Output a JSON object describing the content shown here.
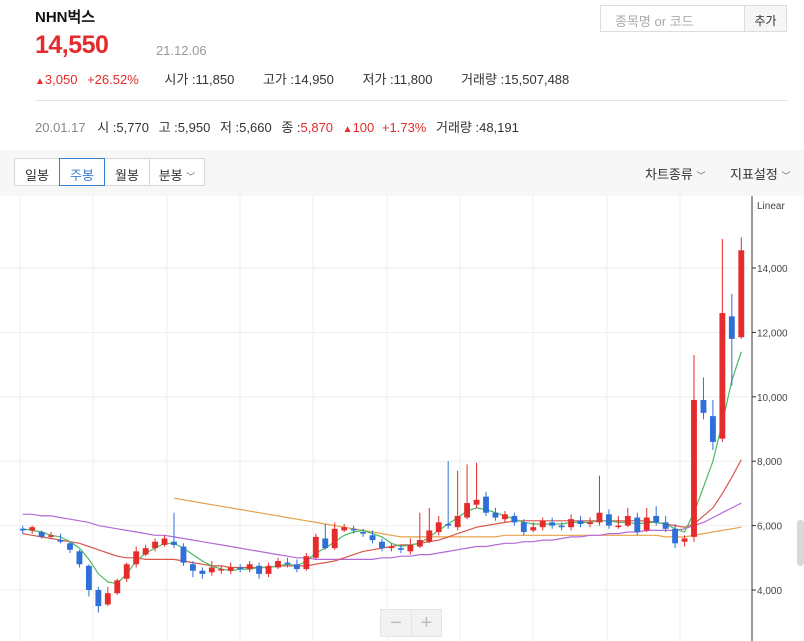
{
  "stock": {
    "name": "NHN벅스",
    "price": "14,550",
    "date": "21.12.06",
    "change": "3,050",
    "change_pct": "+26.52%",
    "open_label": "시가 : ",
    "open": "11,850",
    "high_label": "고가 : ",
    "high": "14,950",
    "low_label": "저가 : ",
    "low": "11,800",
    "volume_label": "거래량 : ",
    "volume": "15,507,488"
  },
  "search": {
    "placeholder": "종목명 or 코드",
    "add_label": "추가"
  },
  "detail": {
    "date": "20.01.17",
    "open_label": "시 : ",
    "open": "5,770",
    "high_label": "고 : ",
    "high": "5,950",
    "low_label": "저 : ",
    "low": "5,660",
    "close_label": "종 : ",
    "close": "5,870",
    "change": "100",
    "change_pct": "+1.73%",
    "volume_label": "거래량 : ",
    "volume": "48,191"
  },
  "toolbar": {
    "tabs": [
      "일봉",
      "주봉",
      "월봉",
      "분봉"
    ],
    "active_tab": 1,
    "chart_type": "차트종류",
    "indicator": "지표설정"
  },
  "colors": {
    "up": "#e52b2b",
    "down": "#2f6fd8",
    "ma5": "#4cbb62",
    "ma20": "#d9574a",
    "ma60": "#b26ad8",
    "ma120": "#e6a24a",
    "accent": "#3b7fd0"
  },
  "chart_data": {
    "type": "candlestick",
    "scale_label": "Linear",
    "yticks": [
      4000,
      6000,
      8000,
      10000,
      12000,
      14000
    ],
    "ytick_labels": [
      "4,000",
      "6,000",
      "8,000",
      "10,000",
      "12,000",
      "14,000"
    ],
    "ylim": [
      3700,
      15200
    ],
    "candles": [
      [
        5900,
        5850,
        6000,
        5750
      ],
      [
        5850,
        5950,
        6000,
        5750
      ],
      [
        5800,
        5650,
        5850,
        5600
      ],
      [
        5650,
        5700,
        5800,
        5600
      ],
      [
        5550,
        5500,
        5750,
        5450
      ],
      [
        5450,
        5250,
        5500,
        5150
      ],
      [
        5200,
        4800,
        5250,
        4700
      ],
      [
        4750,
        4000,
        4800,
        3800
      ],
      [
        4000,
        3500,
        4100,
        3300
      ],
      [
        3550,
        3900,
        4100,
        3500
      ],
      [
        3900,
        4300,
        4350,
        3850
      ],
      [
        4350,
        4800,
        4850,
        4250
      ],
      [
        4800,
        5200,
        5350,
        4700
      ],
      [
        5100,
        5300,
        5400,
        5050
      ],
      [
        5300,
        5500,
        5600,
        5200
      ],
      [
        5400,
        5600,
        5700,
        5350
      ],
      [
        5500,
        5400,
        6400,
        5300
      ],
      [
        5350,
        4850,
        5450,
        4750
      ],
      [
        4800,
        4600,
        4900,
        4400
      ],
      [
        4600,
        4500,
        4700,
        4350
      ],
      [
        4550,
        4700,
        4900,
        4450
      ],
      [
        4650,
        4650,
        4750,
        4500
      ],
      [
        4600,
        4700,
        4850,
        4500
      ],
      [
        4700,
        4650,
        4800,
        4550
      ],
      [
        4650,
        4800,
        4900,
        4550
      ],
      [
        4750,
        4500,
        4850,
        4350
      ],
      [
        4500,
        4750,
        4850,
        4400
      ],
      [
        4700,
        4900,
        5000,
        4650
      ],
      [
        4850,
        4800,
        5000,
        4700
      ],
      [
        4800,
        4650,
        4950,
        4550
      ],
      [
        4650,
        5050,
        5150,
        4600
      ],
      [
        5000,
        5650,
        5750,
        4950
      ],
      [
        5600,
        5300,
        6050,
        5250
      ],
      [
        5300,
        5900,
        6100,
        5250
      ],
      [
        5850,
        5950,
        6050,
        5800
      ],
      [
        5900,
        5850,
        6000,
        5750
      ],
      [
        5800,
        5750,
        5900,
        5650
      ],
      [
        5700,
        5550,
        5850,
        5450
      ],
      [
        5500,
        5300,
        5600,
        5200
      ],
      [
        5300,
        5350,
        5450,
        5200
      ],
      [
        5300,
        5250,
        5400,
        5150
      ],
      [
        5200,
        5400,
        5600,
        5100
      ],
      [
        5350,
        5550,
        6400,
        5300
      ],
      [
        5500,
        5850,
        6550,
        5450
      ],
      [
        5800,
        6100,
        6300,
        5700
      ],
      [
        6050,
        6000,
        8000,
        5900
      ],
      [
        5950,
        6300,
        7700,
        5850
      ],
      [
        6250,
        6700,
        7900,
        6200
      ],
      [
        6650,
        6800,
        7950,
        6550
      ],
      [
        6900,
        6400,
        7050,
        6300
      ],
      [
        6400,
        6250,
        6550,
        6150
      ],
      [
        6200,
        6350,
        6450,
        6100
      ],
      [
        6300,
        6100,
        6400,
        6000
      ],
      [
        6100,
        5800,
        6200,
        5700
      ],
      [
        5850,
        5950,
        6100,
        5800
      ],
      [
        5950,
        6150,
        6250,
        5850
      ],
      [
        6100,
        6000,
        6250,
        5900
      ],
      [
        6000,
        5950,
        6100,
        5850
      ],
      [
        5950,
        6200,
        6350,
        5850
      ],
      [
        6150,
        6050,
        6300,
        5950
      ],
      [
        6050,
        6100,
        6250,
        5950
      ],
      [
        6100,
        6400,
        7550,
        6000
      ],
      [
        6350,
        6000,
        6500,
        5900
      ],
      [
        6000,
        6000,
        6300,
        5900
      ],
      [
        6000,
        6300,
        6550,
        5950
      ],
      [
        6250,
        5800,
        6400,
        5700
      ],
      [
        5850,
        6250,
        6550,
        5800
      ],
      [
        6300,
        6100,
        6600,
        6000
      ],
      [
        6100,
        5900,
        6300,
        5800
      ],
      [
        5900,
        5450,
        6050,
        5300
      ],
      [
        5500,
        5600,
        5700,
        5350
      ],
      [
        5650,
        9900,
        11300,
        5500
      ],
      [
        9900,
        9500,
        10600,
        9300
      ],
      [
        9400,
        8600,
        9900,
        8350
      ],
      [
        8700,
        12600,
        14900,
        8600
      ],
      [
        12500,
        11800,
        13200,
        10350
      ],
      [
        11850,
        14550,
        14950,
        11800
      ]
    ],
    "ma5": [
      5900,
      5850,
      5800,
      5700,
      5650,
      5500,
      5300,
      4950,
      4500,
      4250,
      4200,
      4500,
      4900,
      5150,
      5300,
      5450,
      5450,
      5300,
      5100,
      4900,
      4750,
      4650,
      4600,
      4650,
      4650,
      4700,
      4700,
      4750,
      4800,
      4750,
      4900,
      5150,
      5300,
      5500,
      5700,
      5800,
      5850,
      5750,
      5650,
      5450,
      5350,
      5400,
      5450,
      5650,
      5850,
      6050,
      6250,
      6450,
      6550,
      6500,
      6400,
      6300,
      6200,
      6100,
      6050,
      6050,
      6050,
      6050,
      6100,
      6100,
      6100,
      6150,
      6150,
      6100,
      6100,
      6050,
      6100,
      6100,
      6050,
      5900,
      5800,
      6400,
      7200,
      8000,
      9200,
      10500,
      11400
    ],
    "ma20": [
      5750,
      5700,
      5650,
      5600,
      5550,
      5500,
      5450,
      5350,
      5250,
      5150,
      5050,
      5000,
      5000,
      4950,
      4950,
      4950,
      4950,
      4900,
      4850,
      4800,
      4750,
      4750,
      4700,
      4700,
      4700,
      4700,
      4700,
      4750,
      4750,
      4750,
      4750,
      4800,
      4850,
      4900,
      5000,
      5100,
      5200,
      5250,
      5300,
      5350,
      5400,
      5400,
      5450,
      5500,
      5550,
      5650,
      5750,
      5850,
      5950,
      6000,
      6050,
      6100,
      6150,
      6150,
      6150,
      6150,
      6150,
      6150,
      6150,
      6150,
      6150,
      6150,
      6150,
      6150,
      6150,
      6150,
      6150,
      6100,
      6050,
      6000,
      5950,
      6050,
      6300,
      6550,
      7000,
      7500,
      8050
    ],
    "ma60": [
      6350,
      6350,
      6300,
      6300,
      6250,
      6200,
      6150,
      6100,
      6000,
      5950,
      5900,
      5850,
      5800,
      5750,
      5700,
      5700,
      5650,
      5600,
      5550,
      5500,
      5450,
      5400,
      5350,
      5300,
      5250,
      5200,
      5150,
      5100,
      5050,
      5000,
      5000,
      4950,
      4950,
      4950,
      4950,
      4950,
      4950,
      4950,
      5000,
      5000,
      5050,
      5050,
      5100,
      5100,
      5150,
      5200,
      5250,
      5300,
      5350,
      5350,
      5400,
      5450,
      5450,
      5500,
      5500,
      5550,
      5550,
      5600,
      5650,
      5650,
      5700,
      5700,
      5750,
      5750,
      5800,
      5800,
      5850,
      5850,
      5850,
      5850,
      5900,
      6000,
      6100,
      6250,
      6400,
      6550,
      6700
    ],
    "ma120": [
      null,
      null,
      null,
      null,
      null,
      null,
      null,
      null,
      null,
      null,
      null,
      null,
      null,
      null,
      null,
      null,
      6850,
      6800,
      6750,
      6700,
      6650,
      6600,
      6550,
      6500,
      6450,
      6400,
      6350,
      6300,
      6250,
      6200,
      6150,
      6100,
      6050,
      6000,
      5950,
      5900,
      5850,
      5800,
      5750,
      5700,
      5650,
      5650,
      5650,
      5650,
      5650,
      5650,
      5650,
      5650,
      5650,
      5650,
      5650,
      5700,
      5700,
      5700,
      5700,
      5700,
      5700,
      5700,
      5700,
      5700,
      5700,
      5700,
      5700,
      5700,
      5700,
      5700,
      5700,
      5700,
      5650,
      5650,
      5650,
      5700,
      5750,
      5800,
      5850,
      5900,
      5950
    ]
  }
}
